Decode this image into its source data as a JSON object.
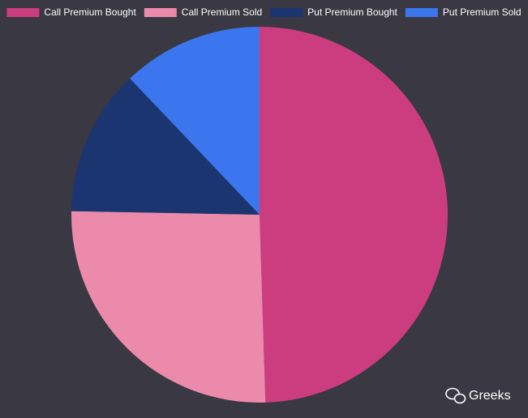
{
  "chart_data": {
    "type": "pie",
    "categories": [
      "Call Premium Bought",
      "Call Premium Sold",
      "Put Premium Bought",
      "Put Premium Sold"
    ],
    "values": [
      49.5,
      25.8,
      12.6,
      12.1
    ],
    "colors": [
      "#cc3d80",
      "#ec8aab",
      "#1b3571",
      "#3b76ef"
    ],
    "legend": "top"
  },
  "watermark": "Greeks"
}
